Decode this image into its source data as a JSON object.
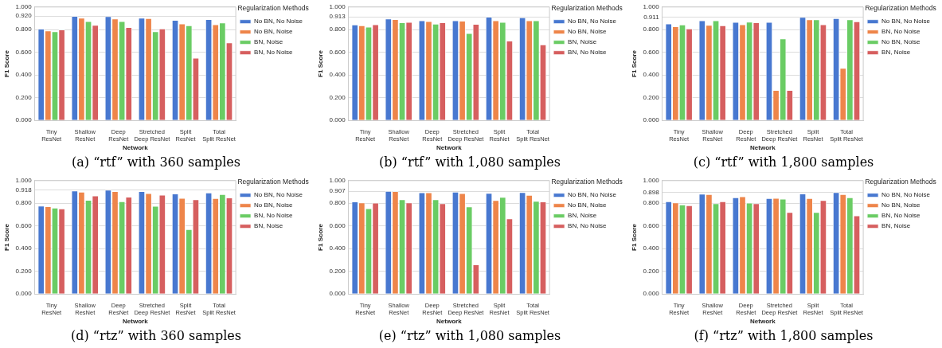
{
  "chart_data": [
    {
      "type": "bar",
      "title": "(a) “rtf” with 360 samples",
      "xlabel": "Network",
      "ylabel": "F1 Score",
      "legend_title": "Regularization Methods",
      "legend": "right",
      "grid": "y",
      "categories": [
        "Tiny\nResNet",
        "Shallow\nResNet",
        "Deep\nResNet",
        "Stretched\nDeep ResNet",
        "Split\nResNet",
        "Total\nSplit ResNet"
      ],
      "ylim": [
        0,
        1
      ],
      "yticks": [
        {
          "value": 0,
          "label": "0.000"
        },
        {
          "value": 0.2,
          "label": "0.200"
        },
        {
          "value": 0.4,
          "label": "0.400"
        },
        {
          "value": 0.6,
          "label": "0.600"
        },
        {
          "value": 0.8,
          "label": "0.800"
        },
        {
          "value": 0.92,
          "label": "0.920"
        },
        {
          "value": 1,
          "label": "1.000"
        }
      ],
      "series": [
        {
          "name": "No BN, No Noise",
          "color": "#4878d0",
          "values": [
            0.808,
            0.92,
            0.918,
            0.905,
            0.885,
            0.892
          ]
        },
        {
          "name": "No BN, Noise",
          "color": "#ee854a",
          "values": [
            0.792,
            0.905,
            0.897,
            0.9,
            0.854,
            0.846
          ]
        },
        {
          "name": "BN, Noise",
          "color": "#6acc64",
          "values": [
            0.785,
            0.874,
            0.874,
            0.785,
            0.838,
            0.862
          ]
        },
        {
          "name": "BN, No Noise",
          "color": "#d65f5f",
          "values": [
            0.8,
            0.841,
            0.821,
            0.81,
            0.551,
            0.687
          ]
        }
      ]
    },
    {
      "type": "bar",
      "title": "(b) “rtf” with 1,080 samples",
      "xlabel": "Network",
      "ylabel": "F1 Score",
      "legend_title": "Regularization Methods",
      "legend": "right",
      "grid": "y",
      "categories": [
        "Tiny\nResNet",
        "Shallow\nResNet",
        "Deep\nResNet",
        "Stretched\nDeep ResNet",
        "Split\nResNet",
        "Total\nSplit ResNet"
      ],
      "ylim": [
        0,
        1
      ],
      "yticks": [
        {
          "value": 0,
          "label": "0.000"
        },
        {
          "value": 0.2,
          "label": "0.200"
        },
        {
          "value": 0.4,
          "label": "0.400"
        },
        {
          "value": 0.6,
          "label": "0.600"
        },
        {
          "value": 0.8,
          "label": "0.800"
        },
        {
          "value": 0.913,
          "label": "0.913"
        },
        {
          "value": 1,
          "label": "1.000"
        }
      ],
      "series": [
        {
          "name": "No BN, No Noise",
          "color": "#4878d0",
          "values": [
            0.844,
            0.897,
            0.882,
            0.882,
            0.913,
            0.908
          ]
        },
        {
          "name": "No BN, Noise",
          "color": "#ee854a",
          "values": [
            0.838,
            0.892,
            0.874,
            0.877,
            0.882,
            0.882
          ]
        },
        {
          "name": "BN, Noise",
          "color": "#6acc64",
          "values": [
            0.826,
            0.864,
            0.851,
            0.769,
            0.867,
            0.882
          ]
        },
        {
          "name": "BN, No Noise",
          "color": "#d65f5f",
          "values": [
            0.846,
            0.867,
            0.864,
            0.849,
            0.703,
            0.669
          ]
        }
      ]
    },
    {
      "type": "bar",
      "title": "(c) “rtf” with 1,800 samples",
      "xlabel": "Network",
      "ylabel": "F1 Score",
      "legend_title": "Regularization Methods",
      "legend": "right",
      "grid": "y",
      "categories": [
        "Tiny\nResNet",
        "Shallow\nResNet",
        "Deep\nResNet",
        "Stretched\nDeep ResNet",
        "Split\nResNet",
        "Total\nSplit ResNet"
      ],
      "ylim": [
        0,
        1
      ],
      "yticks": [
        {
          "value": 0,
          "label": "0.000"
        },
        {
          "value": 0.2,
          "label": "0.200"
        },
        {
          "value": 0.4,
          "label": "0.400"
        },
        {
          "value": 0.6,
          "label": "0.600"
        },
        {
          "value": 0.8,
          "label": "0.800"
        },
        {
          "value": 0.911,
          "label": "0.911"
        },
        {
          "value": 1,
          "label": "1.000"
        }
      ],
      "series": [
        {
          "name": "No BN, No Noise",
          "color": "#4878d0",
          "values": [
            0.854,
            0.882,
            0.867,
            0.867,
            0.911,
            0.9
          ]
        },
        {
          "name": "BN, No Noise",
          "color": "#ee854a",
          "values": [
            0.828,
            0.841,
            0.846,
            0.267,
            0.89,
            0.462
          ]
        },
        {
          "name": "No BN, Noise",
          "color": "#6acc64",
          "values": [
            0.844,
            0.882,
            0.869,
            0.721,
            0.89,
            0.89
          ]
        },
        {
          "name": "BN, Noise",
          "color": "#d65f5f",
          "values": [
            0.81,
            0.838,
            0.864,
            0.267,
            0.846,
            0.872
          ]
        }
      ]
    },
    {
      "type": "bar",
      "title": "(d) “rtz” with 360 samples",
      "xlabel": "Network",
      "ylabel": "F1 Score",
      "legend_title": "Regularization Methods",
      "legend": "right",
      "grid": "y",
      "categories": [
        "Tiny\nResNet",
        "Shallow\nResNet",
        "Deep\nResNet",
        "Stretched\nDeep ResNet",
        "Split\nResNet",
        "Total\nSplit ResNet"
      ],
      "ylim": [
        0,
        1
      ],
      "yticks": [
        {
          "value": 0,
          "label": "0.000"
        },
        {
          "value": 0.2,
          "label": "0.200"
        },
        {
          "value": 0.4,
          "label": "0.400"
        },
        {
          "value": 0.6,
          "label": "0.600"
        },
        {
          "value": 0.8,
          "label": "0.800"
        },
        {
          "value": 0.918,
          "label": "0.918"
        },
        {
          "value": 1,
          "label": "1.000"
        }
      ],
      "series": [
        {
          "name": "No BN, No Noise",
          "color": "#4878d0",
          "values": [
            0.778,
            0.911,
            0.918,
            0.906,
            0.885,
            0.893
          ]
        },
        {
          "name": "No BN, Noise",
          "color": "#ee854a",
          "values": [
            0.773,
            0.901,
            0.906,
            0.888,
            0.847,
            0.844
          ]
        },
        {
          "name": "BN, No Noise",
          "color": "#6acc64",
          "values": [
            0.76,
            0.829,
            0.816,
            0.776,
            0.571,
            0.88
          ]
        },
        {
          "name": "BN, Noise",
          "color": "#d65f5f",
          "values": [
            0.753,
            0.867,
            0.857,
            0.875,
            0.834,
            0.849
          ]
        }
      ]
    },
    {
      "type": "bar",
      "title": "(e) “rtz” with 1,080 samples",
      "xlabel": "Network",
      "ylabel": "F1 Score",
      "legend_title": "Regularization Methods",
      "legend": "right",
      "grid": "y",
      "categories": [
        "Tiny\nResNet",
        "Shallow\nResNet",
        "Deep\nResNet",
        "Stretched\nDeep ResNet",
        "Split\nResNet",
        "Total\nSplit ResNet"
      ],
      "ylim": [
        0,
        1
      ],
      "yticks": [
        {
          "value": 0,
          "label": "0.000"
        },
        {
          "value": 0.2,
          "label": "0.200"
        },
        {
          "value": 0.4,
          "label": "0.400"
        },
        {
          "value": 0.6,
          "label": "0.600"
        },
        {
          "value": 0.8,
          "label": "0.800"
        },
        {
          "value": 0.907,
          "label": "0.907"
        },
        {
          "value": 1,
          "label": "1.000"
        }
      ],
      "series": [
        {
          "name": "No BN, No Noise",
          "color": "#4878d0",
          "values": [
            0.814,
            0.907,
            0.895,
            0.901,
            0.89,
            0.898
          ]
        },
        {
          "name": "No BN, Noise",
          "color": "#ee854a",
          "values": [
            0.806,
            0.906,
            0.895,
            0.888,
            0.827,
            0.872
          ]
        },
        {
          "name": "BN, Noise",
          "color": "#6acc64",
          "values": [
            0.755,
            0.834,
            0.834,
            0.77,
            0.855,
            0.819
          ]
        },
        {
          "name": "BN, No Noise",
          "color": "#d65f5f",
          "values": [
            0.804,
            0.806,
            0.798,
            0.26,
            0.666,
            0.814
          ]
        }
      ]
    },
    {
      "type": "bar",
      "title": "(f) “rtz” with 1,800 samples",
      "xlabel": "Network",
      "ylabel": "F1 Score",
      "legend_title": "Regularization Methods",
      "legend": "right",
      "grid": "y",
      "categories": [
        "Tiny\nResNet",
        "Shallow\nResNet",
        "Deep\nResNet",
        "Stretched\nDeep ResNet",
        "Split\nResNet",
        "Total\nSplit ResNet"
      ],
      "ylim": [
        0,
        1
      ],
      "yticks": [
        {
          "value": 0,
          "label": "0.000"
        },
        {
          "value": 0.2,
          "label": "0.200"
        },
        {
          "value": 0.4,
          "label": "0.400"
        },
        {
          "value": 0.6,
          "label": "0.600"
        },
        {
          "value": 0.8,
          "label": "0.800"
        },
        {
          "value": 0.898,
          "label": "0.898"
        },
        {
          "value": 1,
          "label": "1.000"
        }
      ],
      "series": [
        {
          "name": "No BN, No Noise",
          "color": "#4878d0",
          "values": [
            0.816,
            0.883,
            0.852,
            0.844,
            0.885,
            0.898
          ]
        },
        {
          "name": "No BN, Noise",
          "color": "#ee854a",
          "values": [
            0.806,
            0.88,
            0.86,
            0.847,
            0.844,
            0.88
          ]
        },
        {
          "name": "BN, No Noise",
          "color": "#6acc64",
          "values": [
            0.788,
            0.798,
            0.804,
            0.839,
            0.722,
            0.852
          ]
        },
        {
          "name": "BN, Noise",
          "color": "#d65f5f",
          "values": [
            0.781,
            0.816,
            0.798,
            0.722,
            0.827,
            0.691
          ]
        }
      ]
    }
  ]
}
